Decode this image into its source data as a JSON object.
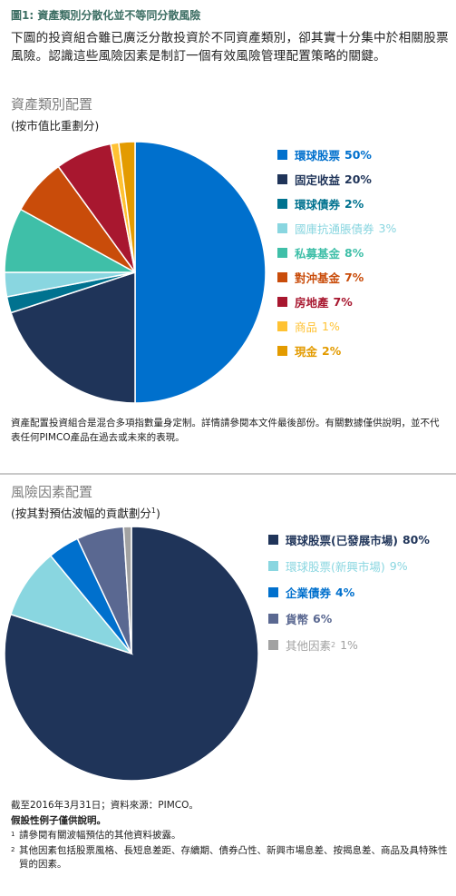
{
  "figure": {
    "title": "圖1: 資產類別分散化並不等同分散風險",
    "intro": "下圖的投資組合雖已廣泛分散投資於不同資產類別，卻其實十分集中於相關股票風險。認識這些風險因素是制訂一個有效風險管理配置策略的關鍵。"
  },
  "chart_data": [
    {
      "type": "pie",
      "title": "資產類別配置",
      "subtitle": "(按市值比重劃分)",
      "unit": "%",
      "slices": [
        {
          "label": "環球股票",
          "value": 50,
          "display": "50%",
          "color": "#0070cd"
        },
        {
          "label": "固定收益",
          "value": 20,
          "display": "20%",
          "color": "#1f3459"
        },
        {
          "label": "環球債券",
          "value": 2,
          "display": "2%",
          "color": "#00728f"
        },
        {
          "label": "國庫抗通脹債券",
          "value": 3,
          "display": "3%",
          "color": "#89d6e0"
        },
        {
          "label": "私募基金",
          "value": 8,
          "display": "8%",
          "color": "#3fbfa8"
        },
        {
          "label": "對沖基金",
          "value": 7,
          "display": "7%",
          "color": "#c94c0a"
        },
        {
          "label": "房地產",
          "value": 7,
          "display": "7%",
          "color": "#a8172f"
        },
        {
          "label": "商品",
          "value": 1,
          "display": "1%",
          "color": "#ffc233"
        },
        {
          "label": "現金",
          "value": 2,
          "display": "2%",
          "color": "#e39b00"
        }
      ],
      "legend": "right",
      "note": "資產配置投資組合是混合多項指數量身定制。詳情請參閱本文件最後部份。有關數據僅供說明，並不代表任何PIMCO產品在過去或未來的表現。"
    },
    {
      "type": "pie",
      "title": "風險因素配置",
      "subtitle": "(按其對預估波幅的貢獻劃分",
      "subtitle_sup": "1",
      "subtitle_end": ")",
      "unit": "%",
      "slices": [
        {
          "label": "環球股票(已發展市場)",
          "value": 80,
          "display": "80%",
          "color": "#1f3459"
        },
        {
          "label": "環球股票(新興市場)",
          "value": 9,
          "display": "9%",
          "color": "#89d6e0"
        },
        {
          "label": "企業債券",
          "value": 4,
          "display": "4%",
          "color": "#0070cd"
        },
        {
          "label": "貨幣",
          "value": 6,
          "display": "6%",
          "color": "#5a6891"
        },
        {
          "label": "其他因素",
          "sup": "2",
          "value": 1,
          "display": "1%",
          "color": "#a2a2a2"
        }
      ],
      "legend": "right"
    }
  ],
  "footer": {
    "date_source": "截至2016年3月31日；資料來源：PIMCO。",
    "hypothetical": "假設性例子僅供說明。",
    "fn1_mark": "1",
    "fn1": "請參閱有關波幅預估的其他資料披露。",
    "fn2_mark": "2",
    "fn2": "其他因素包括股票風格、長短息差距、存續期、債券凸性、新興市場息差、按揭息差、商品及具特殊性質的因素。"
  }
}
